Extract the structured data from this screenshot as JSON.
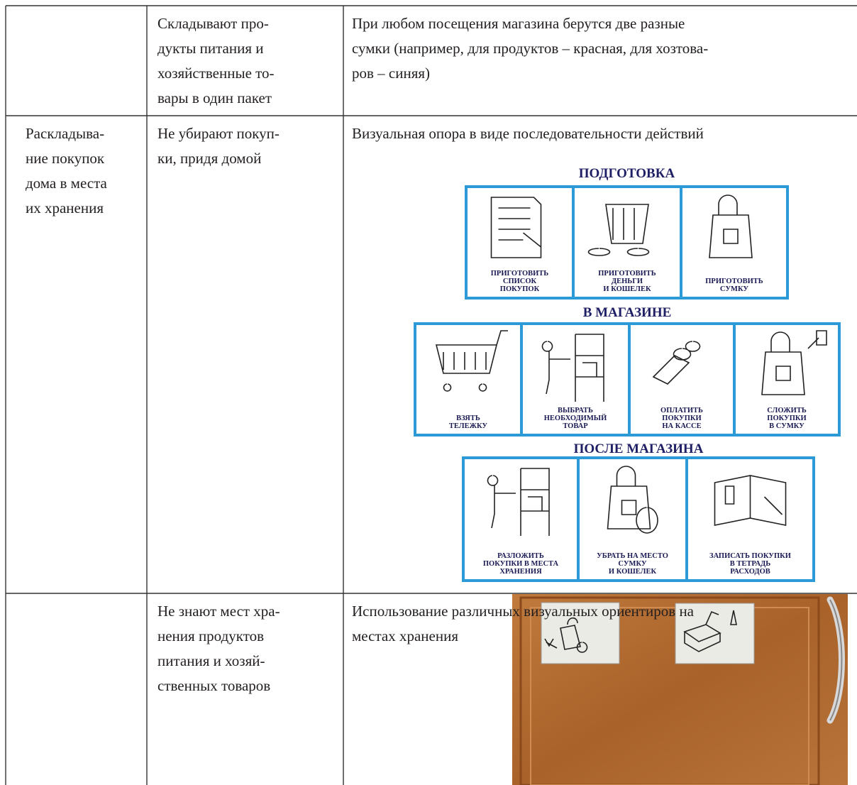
{
  "table": {
    "rows": [
      {
        "problem": [
          "Складывают про-",
          "дукты питания и",
          "хозяйственные то-",
          "вары в один пакет"
        ],
        "support": [
          "При любом посещения магазина берутся две разные",
          "сумки (например, для продуктов – красная, для хозтова-",
          "ров – синяя)"
        ]
      },
      {
        "skill": [
          "Раскладыва-",
          "ние покупок",
          "дома в места",
          "их хранения"
        ],
        "problem": [
          "Не убирают покуп-",
          "ки, придя домой"
        ],
        "support": [
          "Визуальная опора в виде последовательности действий"
        ],
        "schedule": {
          "sections": [
            {
              "title": "ПОДГОТОВКА",
              "items": [
                {
                  "label": [
                    "ПРИГОТОВИТЬ",
                    "СПИСОК",
                    "ПОКУПОК"
                  ]
                },
                {
                  "label": [
                    "ПРИГОТОВИТЬ",
                    "ДЕНЬГИ",
                    "И КОШЕЛЕК"
                  ]
                },
                {
                  "label": [
                    "ПРИГОТОВИТЬ",
                    "СУМКУ"
                  ]
                }
              ]
            },
            {
              "title": "В МАГАЗИНЕ",
              "items": [
                {
                  "label": [
                    "ВЗЯТЬ",
                    "ТЕЛЕЖКУ"
                  ]
                },
                {
                  "label": [
                    "ВЫБРАТЬ",
                    "НЕОБХОДИМЫЙ",
                    "ТОВАР"
                  ]
                },
                {
                  "label": [
                    "ОПЛАТИТЬ",
                    "ПОКУПКИ",
                    "НА КАССЕ"
                  ]
                },
                {
                  "label": [
                    "СЛОЖИТЬ",
                    "ПОКУПКИ",
                    "В СУМКУ"
                  ]
                }
              ]
            },
            {
              "title": "ПОСЛЕ МАГАЗИНА",
              "items": [
                {
                  "label": [
                    "РАЗЛОЖИТЬ",
                    "ПОКУПКИ В МЕСТА",
                    "ХРАНЕНИЯ"
                  ]
                },
                {
                  "label": [
                    "УБРАТЬ НА МЕСТО",
                    "СУМКУ",
                    "И КОШЕЛЕК"
                  ]
                },
                {
                  "label": [
                    "ЗАПИСАТЬ ПОКУПКИ",
                    "В ТЕТРАДЬ",
                    "РАСХОДОВ"
                  ]
                }
              ]
            }
          ]
        }
      },
      {
        "problem": [
          "Не знают мест хра-",
          "нения продуктов",
          "питания и хозяй-",
          "ственных товаров"
        ],
        "support": [
          "Использование различных визуальных ориентиров на",
          "местах хранения"
        ]
      }
    ]
  }
}
